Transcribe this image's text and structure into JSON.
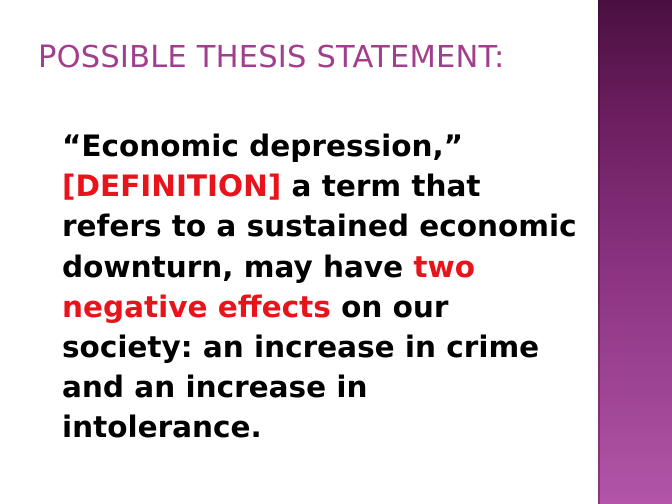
{
  "slide": {
    "title": "Possible Thesis Statement:",
    "body": [
      {
        "text": "“Economic depression,”\n",
        "highlight": false
      },
      {
        "text": "[DEFINITION]",
        "highlight": true
      },
      {
        "text": " a term that\nrefers to a sustained economic\ndownturn, may have ",
        "highlight": false
      },
      {
        "text": "two\nnegative effects",
        "highlight": true
      },
      {
        "text": " on our\nsociety:   an increase in crime\nand an increase in\nintolerance.",
        "highlight": false
      }
    ]
  },
  "colors": {
    "title": "#a23e8e",
    "body": "#000000",
    "highlight": "#e8141c",
    "side_band": "#8a2f7a"
  }
}
